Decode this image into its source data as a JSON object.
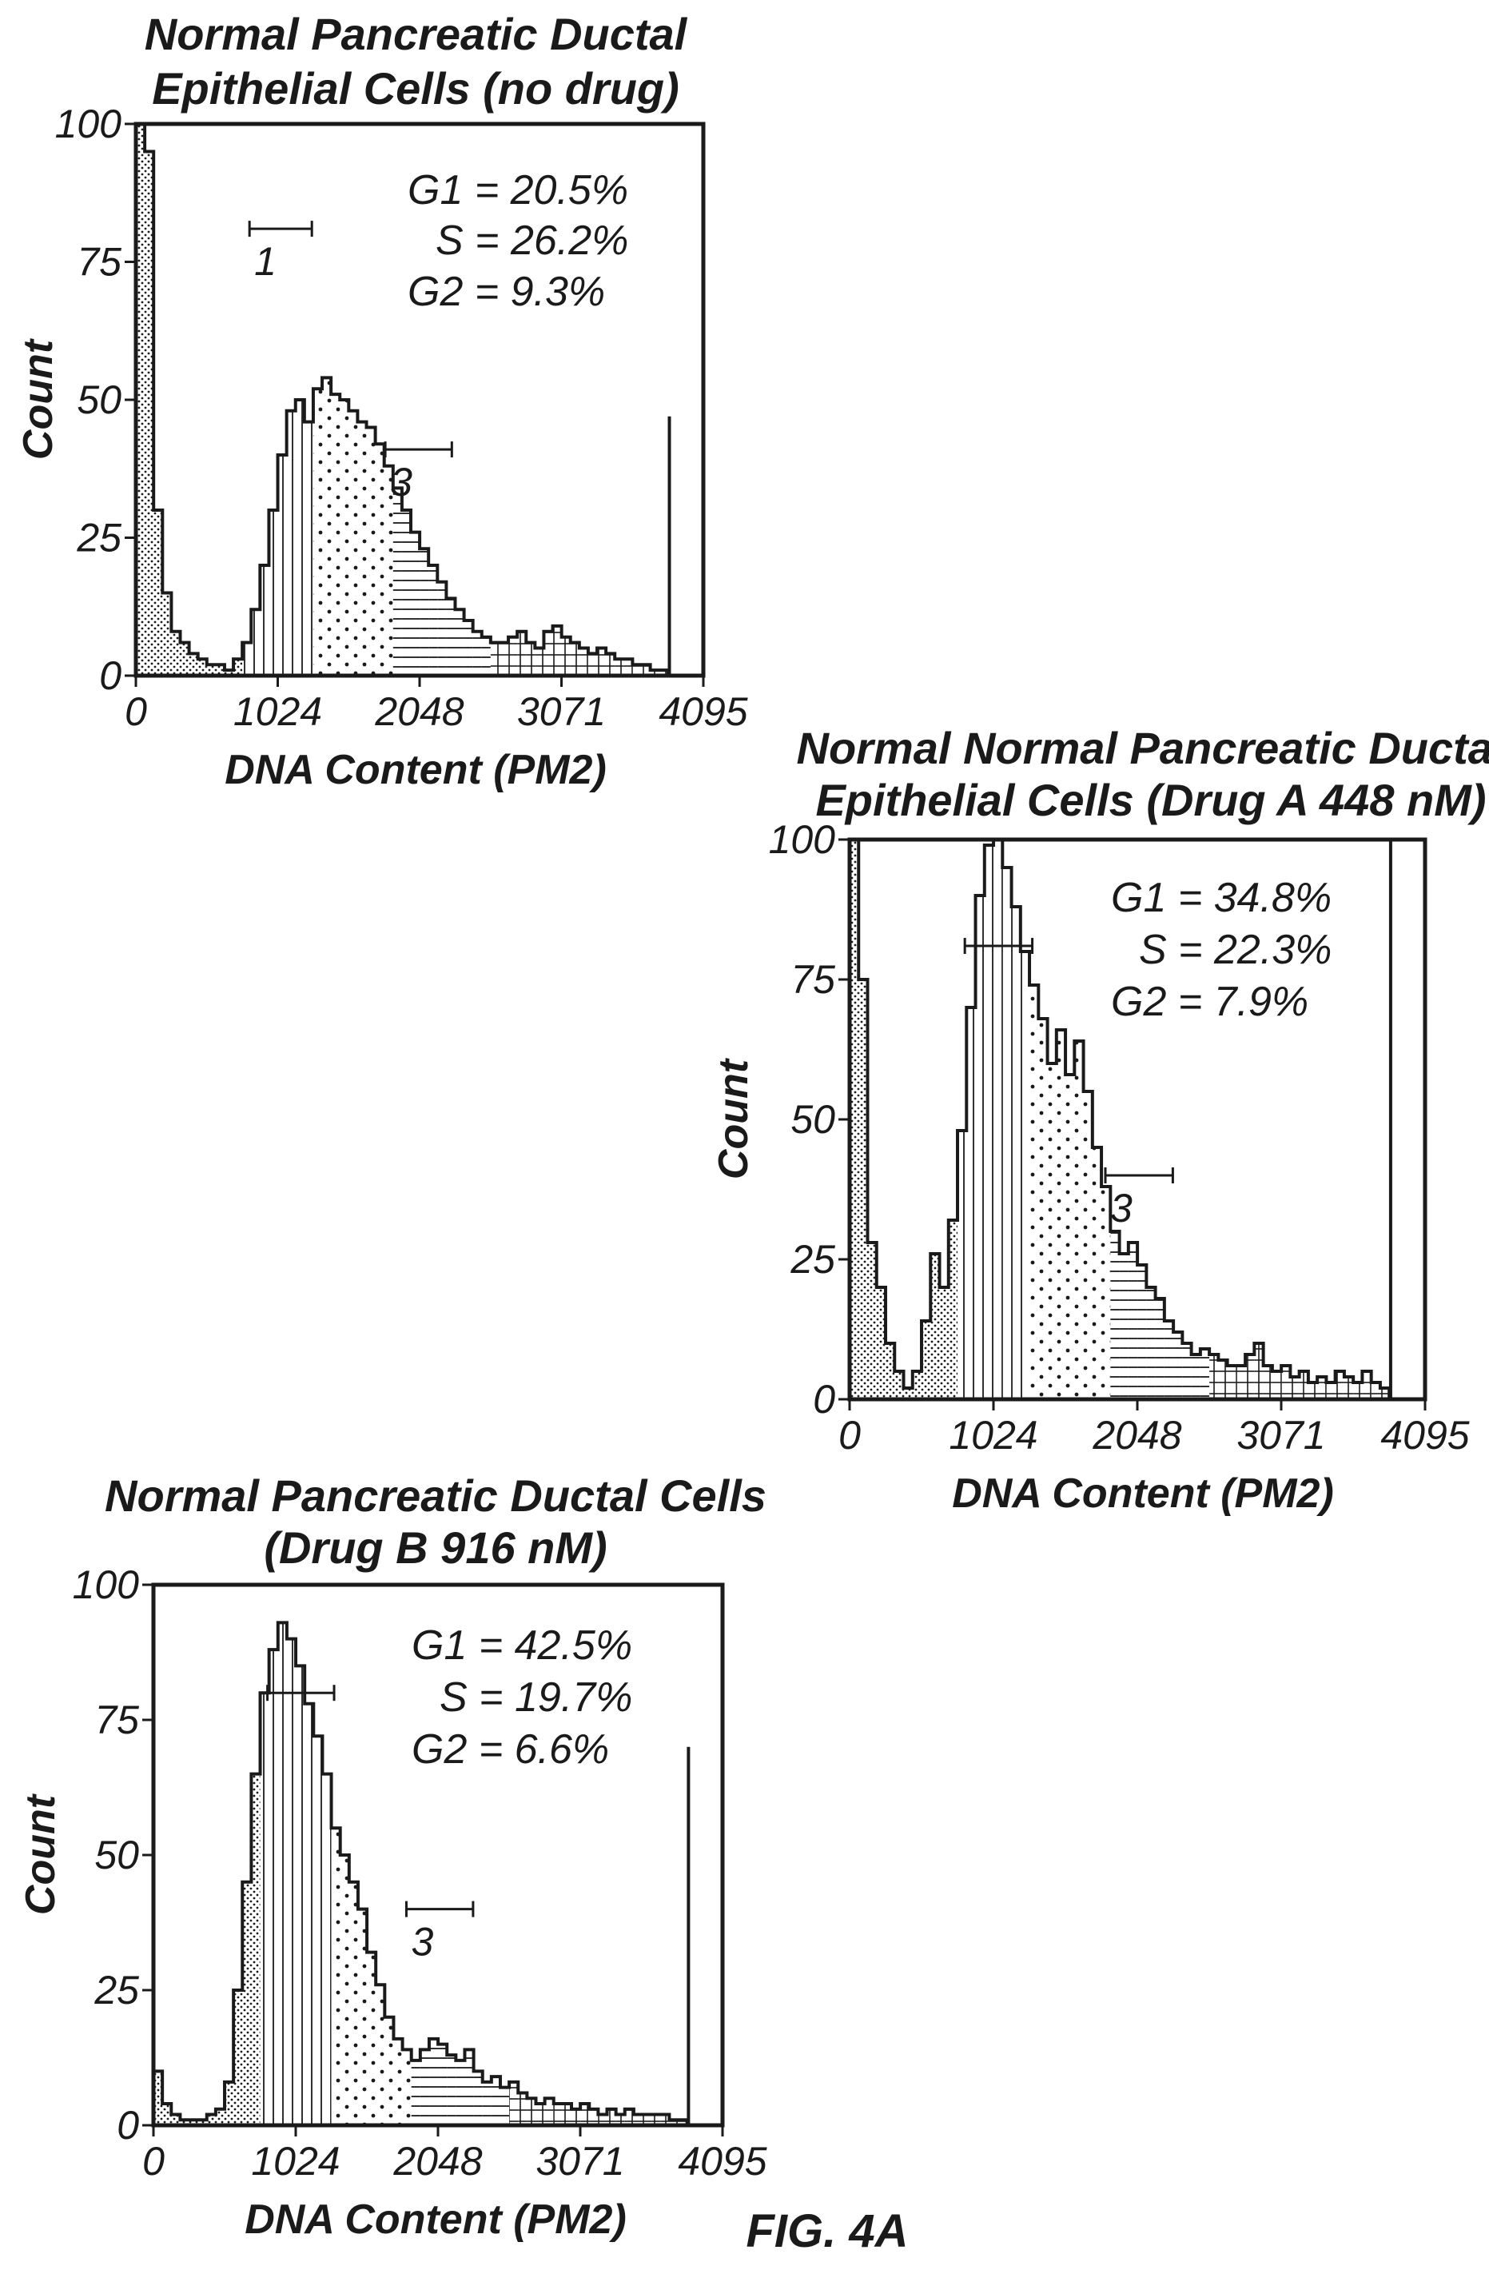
{
  "figure_label": "FIG. 4A",
  "chart_data": [
    {
      "type": "histogram",
      "title_lines": [
        "Normal Pancreatic Ductal",
        "Epithelial Cells (no drug)"
      ],
      "xlabel": "DNA Content (PM2)",
      "ylabel": "Count",
      "x_ticks": [
        "0",
        "1024",
        "2048",
        "3071",
        "4095"
      ],
      "y_ticks": [
        "0",
        "25",
        "50",
        "75",
        "100"
      ],
      "xlim": [
        0,
        4095
      ],
      "ylim": [
        0,
        100
      ],
      "stats": [
        "G1 = 20.5%",
        "S = 26.2%",
        "G2 = 9.3%"
      ],
      "gates": [
        {
          "label": "1",
          "x_start": 820,
          "x_end": 1270,
          "y": 81
        },
        {
          "label": "3",
          "x_start": 1800,
          "x_end": 2280,
          "y": 41
        }
      ],
      "max_marker_x": 3850,
      "max_marker_y": 47,
      "bin_width": 64,
      "histogram": [
        [
          0,
          100
        ],
        [
          64,
          95
        ],
        [
          128,
          30
        ],
        [
          192,
          15
        ],
        [
          256,
          8
        ],
        [
          320,
          6
        ],
        [
          384,
          4
        ],
        [
          448,
          3
        ],
        [
          512,
          2
        ],
        [
          576,
          2
        ],
        [
          640,
          1
        ],
        [
          704,
          3
        ],
        [
          768,
          6
        ],
        [
          832,
          12
        ],
        [
          896,
          20
        ],
        [
          960,
          30
        ],
        [
          1024,
          40
        ],
        [
          1088,
          48
        ],
        [
          1152,
          50
        ],
        [
          1216,
          46
        ],
        [
          1280,
          52
        ],
        [
          1344,
          54
        ],
        [
          1408,
          51
        ],
        [
          1472,
          50
        ],
        [
          1536,
          48
        ],
        [
          1600,
          46
        ],
        [
          1664,
          45
        ],
        [
          1728,
          42
        ],
        [
          1792,
          38
        ],
        [
          1856,
          34
        ],
        [
          1920,
          30
        ],
        [
          1984,
          26
        ],
        [
          2048,
          23
        ],
        [
          2112,
          20
        ],
        [
          2176,
          17
        ],
        [
          2240,
          14
        ],
        [
          2304,
          12
        ],
        [
          2368,
          10
        ],
        [
          2432,
          8
        ],
        [
          2496,
          7
        ],
        [
          2560,
          6
        ],
        [
          2624,
          6
        ],
        [
          2688,
          7
        ],
        [
          2752,
          8
        ],
        [
          2816,
          6
        ],
        [
          2880,
          5
        ],
        [
          2944,
          8
        ],
        [
          3008,
          9
        ],
        [
          3072,
          7
        ],
        [
          3136,
          6
        ],
        [
          3200,
          5
        ],
        [
          3264,
          4
        ],
        [
          3328,
          5
        ],
        [
          3392,
          4
        ],
        [
          3456,
          3
        ],
        [
          3520,
          3
        ],
        [
          3584,
          2
        ],
        [
          3648,
          2
        ],
        [
          3712,
          1
        ],
        [
          3776,
          1
        ]
      ]
    },
    {
      "type": "histogram",
      "title_lines": [
        "Normal Normal Pancreatic Ductal",
        "Epithelial Cells (Drug A 448 nM)"
      ],
      "xlabel": "DNA Content (PM2)",
      "ylabel": "Count",
      "x_ticks": [
        "0",
        "1024",
        "2048",
        "3071",
        "4095"
      ],
      "y_ticks": [
        "0",
        "25",
        "50",
        "75",
        "100"
      ],
      "xlim": [
        0,
        4095
      ],
      "ylim": [
        0,
        100
      ],
      "stats": [
        "G1 = 34.8%",
        "S = 22.3%",
        "G2 = 7.9%"
      ],
      "gates": [
        {
          "label": "",
          "x_start": 820,
          "x_end": 1300,
          "y": 81
        },
        {
          "label": "3",
          "x_start": 1820,
          "x_end": 2300,
          "y": 40
        }
      ],
      "max_marker_x": 3850,
      "max_marker_y": 100,
      "bin_width": 64,
      "histogram": [
        [
          0,
          100
        ],
        [
          64,
          75
        ],
        [
          128,
          28
        ],
        [
          192,
          20
        ],
        [
          256,
          10
        ],
        [
          320,
          5
        ],
        [
          384,
          2
        ],
        [
          448,
          5
        ],
        [
          512,
          14
        ],
        [
          576,
          26
        ],
        [
          640,
          20
        ],
        [
          704,
          32
        ],
        [
          768,
          48
        ],
        [
          832,
          70
        ],
        [
          896,
          90
        ],
        [
          960,
          99
        ],
        [
          1024,
          100
        ],
        [
          1088,
          95
        ],
        [
          1152,
          88
        ],
        [
          1216,
          80
        ],
        [
          1280,
          74
        ],
        [
          1344,
          68
        ],
        [
          1408,
          60
        ],
        [
          1472,
          66
        ],
        [
          1536,
          58
        ],
        [
          1600,
          64
        ],
        [
          1664,
          55
        ],
        [
          1728,
          45
        ],
        [
          1792,
          38
        ],
        [
          1856,
          30
        ],
        [
          1920,
          26
        ],
        [
          1984,
          28
        ],
        [
          2048,
          24
        ],
        [
          2112,
          20
        ],
        [
          2176,
          18
        ],
        [
          2240,
          14
        ],
        [
          2304,
          12
        ],
        [
          2368,
          10
        ],
        [
          2432,
          8
        ],
        [
          2496,
          9
        ],
        [
          2560,
          8
        ],
        [
          2624,
          7
        ],
        [
          2688,
          6
        ],
        [
          2752,
          6
        ],
        [
          2816,
          8
        ],
        [
          2880,
          10
        ],
        [
          2944,
          6
        ],
        [
          3008,
          5
        ],
        [
          3072,
          6
        ],
        [
          3136,
          4
        ],
        [
          3200,
          5
        ],
        [
          3264,
          3
        ],
        [
          3328,
          4
        ],
        [
          3392,
          3
        ],
        [
          3456,
          5
        ],
        [
          3520,
          4
        ],
        [
          3584,
          3
        ],
        [
          3648,
          5
        ],
        [
          3712,
          3
        ],
        [
          3776,
          2
        ]
      ]
    },
    {
      "type": "histogram",
      "title_lines": [
        "Normal Pancreatic Ductal Cells",
        "(Drug B 916 nM)"
      ],
      "xlabel": "DNA Content (PM2)",
      "ylabel": "Count",
      "x_ticks": [
        "0",
        "1024",
        "2048",
        "3071",
        "4095"
      ],
      "y_ticks": [
        "0",
        "25",
        "50",
        "75",
        "100"
      ],
      "xlim": [
        0,
        4095
      ],
      "ylim": [
        0,
        100
      ],
      "stats": [
        "G1 = 42.5%",
        "S = 19.7%",
        "G2 = 6.6%"
      ],
      "gates": [
        {
          "label": "",
          "x_start": 820,
          "x_end": 1300,
          "y": 80
        },
        {
          "label": "3",
          "x_start": 1820,
          "x_end": 2300,
          "y": 40
        }
      ],
      "max_marker_x": 3850,
      "max_marker_y": 70,
      "bin_width": 64,
      "histogram": [
        [
          0,
          10
        ],
        [
          64,
          4
        ],
        [
          128,
          2
        ],
        [
          192,
          1
        ],
        [
          256,
          1
        ],
        [
          320,
          1
        ],
        [
          384,
          2
        ],
        [
          448,
          3
        ],
        [
          512,
          8
        ],
        [
          576,
          25
        ],
        [
          640,
          45
        ],
        [
          704,
          65
        ],
        [
          768,
          80
        ],
        [
          832,
          88
        ],
        [
          896,
          93
        ],
        [
          960,
          90
        ],
        [
          1024,
          85
        ],
        [
          1088,
          78
        ],
        [
          1152,
          72
        ],
        [
          1216,
          65
        ],
        [
          1280,
          55
        ],
        [
          1344,
          50
        ],
        [
          1408,
          45
        ],
        [
          1472,
          40
        ],
        [
          1536,
          32
        ],
        [
          1600,
          26
        ],
        [
          1664,
          20
        ],
        [
          1728,
          16
        ],
        [
          1792,
          14
        ],
        [
          1856,
          12
        ],
        [
          1920,
          14
        ],
        [
          1984,
          16
        ],
        [
          2048,
          15
        ],
        [
          2112,
          13
        ],
        [
          2176,
          12
        ],
        [
          2240,
          14
        ],
        [
          2304,
          10
        ],
        [
          2368,
          8
        ],
        [
          2432,
          9
        ],
        [
          2496,
          7
        ],
        [
          2560,
          8
        ],
        [
          2624,
          6
        ],
        [
          2688,
          5
        ],
        [
          2752,
          4
        ],
        [
          2816,
          5
        ],
        [
          2880,
          4
        ],
        [
          2944,
          4
        ],
        [
          3008,
          3
        ],
        [
          3072,
          4
        ],
        [
          3136,
          3
        ],
        [
          3200,
          2
        ],
        [
          3264,
          3
        ],
        [
          3328,
          2
        ],
        [
          3392,
          3
        ],
        [
          3456,
          2
        ],
        [
          3520,
          2
        ],
        [
          3584,
          2
        ],
        [
          3648,
          2
        ],
        [
          3712,
          1
        ],
        [
          3776,
          1
        ]
      ]
    }
  ]
}
